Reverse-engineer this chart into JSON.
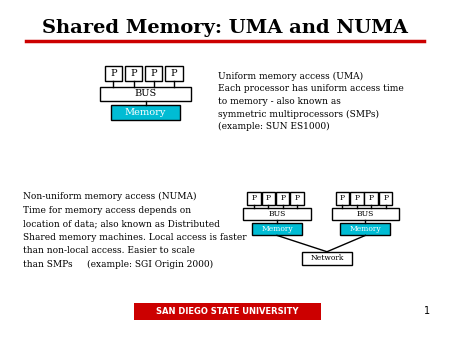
{
  "title": "Shared Memory: UMA and NUMA",
  "title_fontsize": 14,
  "title_fontweight": "bold",
  "bg_color": "#ffffff",
  "red_line_color": "#cc0000",
  "cyan_color": "#00bcd4",
  "box_edge_color": "#000000",
  "text_color": "#000000",
  "sdsu_bg": "#cc0000",
  "sdsu_text": "SAN DIEGO STATE UNIVERSITY",
  "sdsu_text_color": "#ffffff",
  "uma_text": "Uniform memory access (UMA)\nEach processor has uniform access time\nto memory - also known as\nsymmetric multiprocessors (SMPs)\n(example: SUN ES1000)",
  "numa_text": "Non-uniform memory access (NUMA)\nTime for memory access depends on\nlocation of data; also known as Distributed\nShared memory machines. Local access is faster\nthan non-local access. Easier to scale\nthan SMPs     (example: SGI Origin 2000)",
  "page_number": "1"
}
